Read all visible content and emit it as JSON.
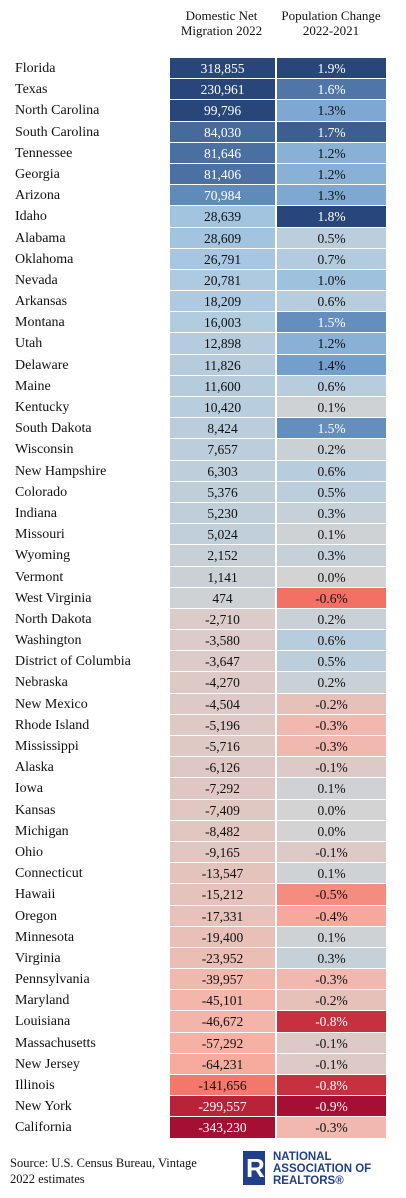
{
  "chart_data": {
    "type": "table",
    "columns": [
      "Domestic Net Migration 2022",
      "Population Change 2022-2021"
    ],
    "header_line1": [
      "Domestic Net",
      "Population Change"
    ],
    "header_line2": [
      "Migration 2022",
      "2022-2021"
    ],
    "rows": [
      {
        "state": "Florida",
        "migration": "318,855",
        "change": "1.9%",
        "m": 318855,
        "c": 1.9
      },
      {
        "state": "Texas",
        "migration": "230,961",
        "change": "1.6%",
        "m": 230961,
        "c": 1.6
      },
      {
        "state": "North Carolina",
        "migration": "99,796",
        "change": "1.3%",
        "m": 99796,
        "c": 1.3
      },
      {
        "state": "South Carolina",
        "migration": "84,030",
        "change": "1.7%",
        "m": 84030,
        "c": 1.7
      },
      {
        "state": "Tennessee",
        "migration": "81,646",
        "change": "1.2%",
        "m": 81646,
        "c": 1.2
      },
      {
        "state": "Georgia",
        "migration": "81,406",
        "change": "1.2%",
        "m": 81406,
        "c": 1.2
      },
      {
        "state": "Arizona",
        "migration": "70,984",
        "change": "1.3%",
        "m": 70984,
        "c": 1.3
      },
      {
        "state": "Idaho",
        "migration": "28,639",
        "change": "1.8%",
        "m": 28639,
        "c": 1.8
      },
      {
        "state": "Alabama",
        "migration": "28,609",
        "change": "0.5%",
        "m": 28609,
        "c": 0.5
      },
      {
        "state": "Oklahoma",
        "migration": "26,791",
        "change": "0.7%",
        "m": 26791,
        "c": 0.7
      },
      {
        "state": "Nevada",
        "migration": "20,781",
        "change": "1.0%",
        "m": 20781,
        "c": 1.0
      },
      {
        "state": "Arkansas",
        "migration": "18,209",
        "change": "0.6%",
        "m": 18209,
        "c": 0.6
      },
      {
        "state": "Montana",
        "migration": "16,003",
        "change": "1.5%",
        "m": 16003,
        "c": 1.5
      },
      {
        "state": "Utah",
        "migration": "12,898",
        "change": "1.2%",
        "m": 12898,
        "c": 1.2
      },
      {
        "state": "Delaware",
        "migration": "11,826",
        "change": "1.4%",
        "m": 11826,
        "c": 1.4
      },
      {
        "state": "Maine",
        "migration": "11,600",
        "change": "0.6%",
        "m": 11600,
        "c": 0.6
      },
      {
        "state": "Kentucky",
        "migration": "10,420",
        "change": "0.1%",
        "m": 10420,
        "c": 0.1
      },
      {
        "state": "South Dakota",
        "migration": "8,424",
        "change": "1.5%",
        "m": 8424,
        "c": 1.5
      },
      {
        "state": "Wisconsin",
        "migration": "7,657",
        "change": "0.2%",
        "m": 7657,
        "c": 0.2
      },
      {
        "state": "New Hampshire",
        "migration": "6,303",
        "change": "0.6%",
        "m": 6303,
        "c": 0.6
      },
      {
        "state": "Colorado",
        "migration": "5,376",
        "change": "0.5%",
        "m": 5376,
        "c": 0.5
      },
      {
        "state": "Indiana",
        "migration": "5,230",
        "change": "0.3%",
        "m": 5230,
        "c": 0.3
      },
      {
        "state": "Missouri",
        "migration": "5,024",
        "change": "0.1%",
        "m": 5024,
        "c": 0.1
      },
      {
        "state": "Wyoming",
        "migration": "2,152",
        "change": "0.3%",
        "m": 2152,
        "c": 0.3
      },
      {
        "state": "Vermont",
        "migration": "1,141",
        "change": "0.0%",
        "m": 1141,
        "c": 0.0
      },
      {
        "state": "West Virginia",
        "migration": "474",
        "change": "-0.6%",
        "m": 474,
        "c": -0.6
      },
      {
        "state": "North Dakota",
        "migration": "-2,710",
        "change": "0.2%",
        "m": -2710,
        "c": 0.2
      },
      {
        "state": "Washington",
        "migration": "-3,580",
        "change": "0.6%",
        "m": -3580,
        "c": 0.6
      },
      {
        "state": "District of Columbia",
        "migration": "-3,647",
        "change": "0.5%",
        "m": -3647,
        "c": 0.5
      },
      {
        "state": "Nebraska",
        "migration": "-4,270",
        "change": "0.2%",
        "m": -4270,
        "c": 0.2
      },
      {
        "state": "New Mexico",
        "migration": "-4,504",
        "change": "-0.2%",
        "m": -4504,
        "c": -0.2
      },
      {
        "state": "Rhode Island",
        "migration": "-5,196",
        "change": "-0.3%",
        "m": -5196,
        "c": -0.3
      },
      {
        "state": "Mississippi",
        "migration": "-5,716",
        "change": "-0.3%",
        "m": -5716,
        "c": -0.3
      },
      {
        "state": "Alaska",
        "migration": "-6,126",
        "change": "-0.1%",
        "m": -6126,
        "c": -0.1
      },
      {
        "state": "Iowa",
        "migration": "-7,292",
        "change": "0.1%",
        "m": -7292,
        "c": 0.1
      },
      {
        "state": "Kansas",
        "migration": "-7,409",
        "change": "0.0%",
        "m": -7409,
        "c": 0.0
      },
      {
        "state": "Michigan",
        "migration": "-8,482",
        "change": "0.0%",
        "m": -8482,
        "c": 0.0
      },
      {
        "state": "Ohio",
        "migration": "-9,165",
        "change": "-0.1%",
        "m": -9165,
        "c": -0.1
      },
      {
        "state": "Connecticut",
        "migration": "-13,547",
        "change": "0.1%",
        "m": -13547,
        "c": 0.1
      },
      {
        "state": "Hawaii",
        "migration": "-15,212",
        "change": "-0.5%",
        "m": -15212,
        "c": -0.5
      },
      {
        "state": "Oregon",
        "migration": "-17,331",
        "change": "-0.4%",
        "m": -17331,
        "c": -0.4
      },
      {
        "state": "Minnesota",
        "migration": "-19,400",
        "change": "0.1%",
        "m": -19400,
        "c": 0.1
      },
      {
        "state": "Virginia",
        "migration": "-23,952",
        "change": "0.3%",
        "m": -23952,
        "c": 0.3
      },
      {
        "state": "Pennsylvania",
        "migration": "-39,957",
        "change": "-0.3%",
        "m": -39957,
        "c": -0.3
      },
      {
        "state": "Maryland",
        "migration": "-45,101",
        "change": "-0.2%",
        "m": -45101,
        "c": -0.2
      },
      {
        "state": "Louisiana",
        "migration": "-46,672",
        "change": "-0.8%",
        "m": -46672,
        "c": -0.8
      },
      {
        "state": "Massachusetts",
        "migration": "-57,292",
        "change": "-0.1%",
        "m": -57292,
        "c": -0.1
      },
      {
        "state": "New Jersey",
        "migration": "-64,231",
        "change": "-0.1%",
        "m": -64231,
        "c": -0.1
      },
      {
        "state": "Illinois",
        "migration": "-141,656",
        "change": "-0.8%",
        "m": -141656,
        "c": -0.8
      },
      {
        "state": "New York",
        "migration": "-299,557",
        "change": "-0.9%",
        "m": -299557,
        "c": -0.9
      },
      {
        "state": "California",
        "migration": "-343,230",
        "change": "-0.3%",
        "m": -343230,
        "c": -0.3
      }
    ],
    "source_line1": "Source: U.S. Census Bureau, Vintage",
    "source_line2": "2022 estimates"
  },
  "logo": {
    "mark": "R",
    "line1": "NATIONAL",
    "line2": "ASSOCIATION OF",
    "line3": "REALTORS®"
  },
  "colors": {
    "blue_dark": "#28467a",
    "blue_mid": "#6f9ccb",
    "blue_light": "#a9c9e2",
    "neutral": "#d3d3d3",
    "red_light": "#f6b3a6",
    "red_mid": "#f25c4f",
    "red_dark": "#a50f33"
  }
}
